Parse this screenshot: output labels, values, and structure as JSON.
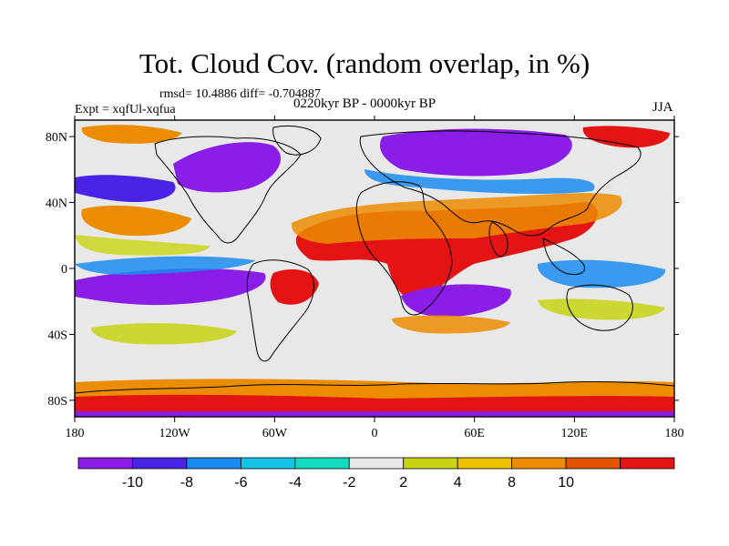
{
  "title": "Tot. Cloud Cov. (random overlap, in %)",
  "stats": "rmsd= 10.4886 diff= -0.704887",
  "experiment": "Expt = xqfUl-xqfua",
  "period": "0220kyr BP - 0000kyr BP",
  "season": "JJA",
  "axes": {
    "x_ticks": [
      "180",
      "120W",
      "60W",
      "0",
      "60E",
      "120E",
      "180"
    ],
    "y_ticks": [
      "80N",
      "40N",
      "0",
      "40S",
      "80S"
    ]
  },
  "colorbar": {
    "labels": [
      "-10",
      "-8",
      "-6",
      "-4",
      "-2",
      "2",
      "4",
      "8",
      "10"
    ],
    "colors": [
      "#8a1ee8",
      "#4a24e6",
      "#1a8cf0",
      "#14c4e6",
      "#12dcc0",
      "#e8e8e8",
      "#c8d410",
      "#ecc200",
      "#ec8c00",
      "#e45400",
      "#e41414"
    ]
  }
}
